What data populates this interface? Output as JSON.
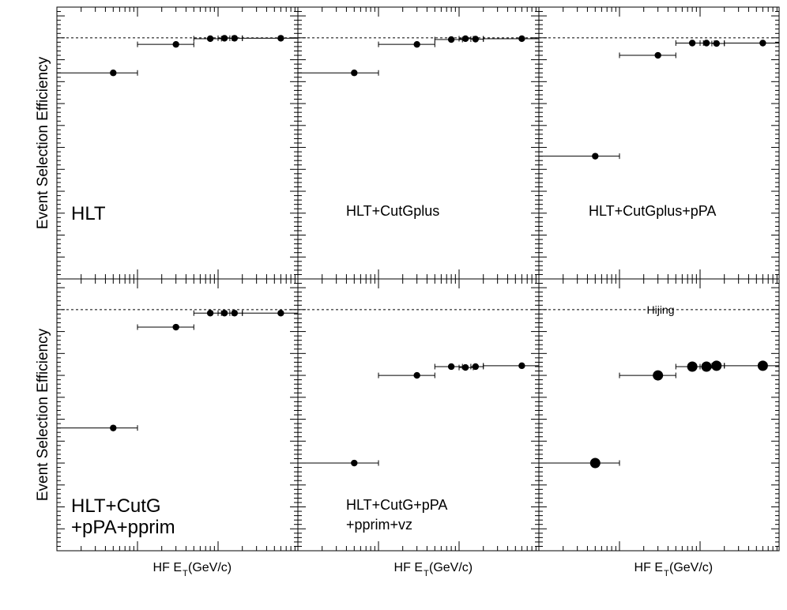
{
  "figure": {
    "ylabel": "Event Selection Efficiency",
    "xlabel_main": "HF E",
    "xlabel_sub": "T",
    "xlabel_unit": " (GeV/c)"
  },
  "chart_data": [
    {
      "type": "scatter",
      "panel": "top-left",
      "label_lines": [
        "HLT"
      ],
      "x_scale": "log",
      "reference_line": 1.0,
      "points": [
        {
          "x": 5,
          "y": 0.92,
          "xerr_low": 4,
          "xerr_high": 5
        },
        {
          "x": 30,
          "y": 0.985,
          "xerr_low": 20,
          "xerr_high": 20
        },
        {
          "x": 80,
          "y": 0.998,
          "xerr_low": 30,
          "xerr_high": 30
        },
        {
          "x": 120,
          "y": 0.999,
          "xerr_low": 20,
          "xerr_high": 30
        },
        {
          "x": 160,
          "y": 0.999,
          "xerr_low": 20,
          "xerr_high": 40
        },
        {
          "x": 600,
          "y": 0.999,
          "xerr_low": 400,
          "xerr_high": 400
        }
      ]
    },
    {
      "type": "scatter",
      "panel": "top-middle",
      "label_lines": [
        "HLT+CutGplus"
      ],
      "x_scale": "log",
      "reference_line": 1.0,
      "points": [
        {
          "x": 5,
          "y": 0.92,
          "xerr_low": 4,
          "xerr_high": 5
        },
        {
          "x": 30,
          "y": 0.985,
          "xerr_low": 20,
          "xerr_high": 20
        },
        {
          "x": 80,
          "y": 0.996,
          "xerr_low": 30,
          "xerr_high": 30
        },
        {
          "x": 120,
          "y": 0.998,
          "xerr_low": 20,
          "xerr_high": 30
        },
        {
          "x": 160,
          "y": 0.997,
          "xerr_low": 20,
          "xerr_high": 40
        },
        {
          "x": 600,
          "y": 0.998,
          "xerr_low": 400,
          "xerr_high": 400
        }
      ]
    },
    {
      "type": "scatter",
      "panel": "top-right",
      "label_lines": [
        "HLT+CutGplus+pPA"
      ],
      "x_scale": "log",
      "reference_line": 1.0,
      "points": [
        {
          "x": 5,
          "y": 0.73,
          "xerr_low": 4,
          "xerr_high": 5
        },
        {
          "x": 30,
          "y": 0.96,
          "xerr_low": 20,
          "xerr_high": 20
        },
        {
          "x": 80,
          "y": 0.988,
          "xerr_low": 30,
          "xerr_high": 30
        },
        {
          "x": 120,
          "y": 0.988,
          "xerr_low": 20,
          "xerr_high": 30
        },
        {
          "x": 160,
          "y": 0.987,
          "xerr_low": 20,
          "xerr_high": 40
        },
        {
          "x": 600,
          "y": 0.988,
          "xerr_low": 400,
          "xerr_high": 400
        }
      ]
    },
    {
      "type": "scatter",
      "panel": "bottom-left",
      "label_lines": [
        "HLT+CutG",
        "+pPA+pprim"
      ],
      "x_scale": "log",
      "reference_line": 1.0,
      "points": [
        {
          "x": 5,
          "y": 0.73,
          "xerr_low": 4,
          "xerr_high": 5
        },
        {
          "x": 30,
          "y": 0.96,
          "xerr_low": 20,
          "xerr_high": 20
        },
        {
          "x": 80,
          "y": 0.992,
          "xerr_low": 30,
          "xerr_high": 30
        },
        {
          "x": 120,
          "y": 0.992,
          "xerr_low": 20,
          "xerr_high": 30
        },
        {
          "x": 160,
          "y": 0.992,
          "xerr_low": 20,
          "xerr_high": 40
        },
        {
          "x": 600,
          "y": 0.992,
          "xerr_low": 400,
          "xerr_high": 400
        }
      ]
    },
    {
      "type": "scatter",
      "panel": "bottom-middle",
      "label_lines": [
        "HLT+CutG+pPA",
        "+pprim+vz"
      ],
      "x_scale": "log",
      "reference_line": 1.0,
      "points": [
        {
          "x": 5,
          "y": 0.65,
          "xerr_low": 4,
          "xerr_high": 5
        },
        {
          "x": 30,
          "y": 0.85,
          "xerr_low": 20,
          "xerr_high": 20
        },
        {
          "x": 80,
          "y": 0.87,
          "xerr_low": 30,
          "xerr_high": 30
        },
        {
          "x": 120,
          "y": 0.868,
          "xerr_low": 20,
          "xerr_high": 30
        },
        {
          "x": 160,
          "y": 0.87,
          "xerr_low": 20,
          "xerr_high": 40
        },
        {
          "x": 600,
          "y": 0.872,
          "xerr_low": 400,
          "xerr_high": 400
        }
      ]
    },
    {
      "type": "scatter",
      "panel": "bottom-right",
      "label_lines": [],
      "annotation": "Hijing",
      "x_scale": "log",
      "reference_line": 1.0,
      "marker": "large",
      "points": [
        {
          "x": 5,
          "y": 0.65,
          "xerr_low": 4,
          "xerr_high": 5
        },
        {
          "x": 30,
          "y": 0.85,
          "xerr_low": 20,
          "xerr_high": 20
        },
        {
          "x": 80,
          "y": 0.87,
          "xerr_low": 30,
          "xerr_high": 30
        },
        {
          "x": 120,
          "y": 0.87,
          "xerr_low": 20,
          "xerr_high": 30
        },
        {
          "x": 160,
          "y": 0.872,
          "xerr_low": 20,
          "xerr_high": 40
        },
        {
          "x": 600,
          "y": 0.872,
          "xerr_low": 400,
          "xerr_high": 400
        }
      ]
    }
  ]
}
